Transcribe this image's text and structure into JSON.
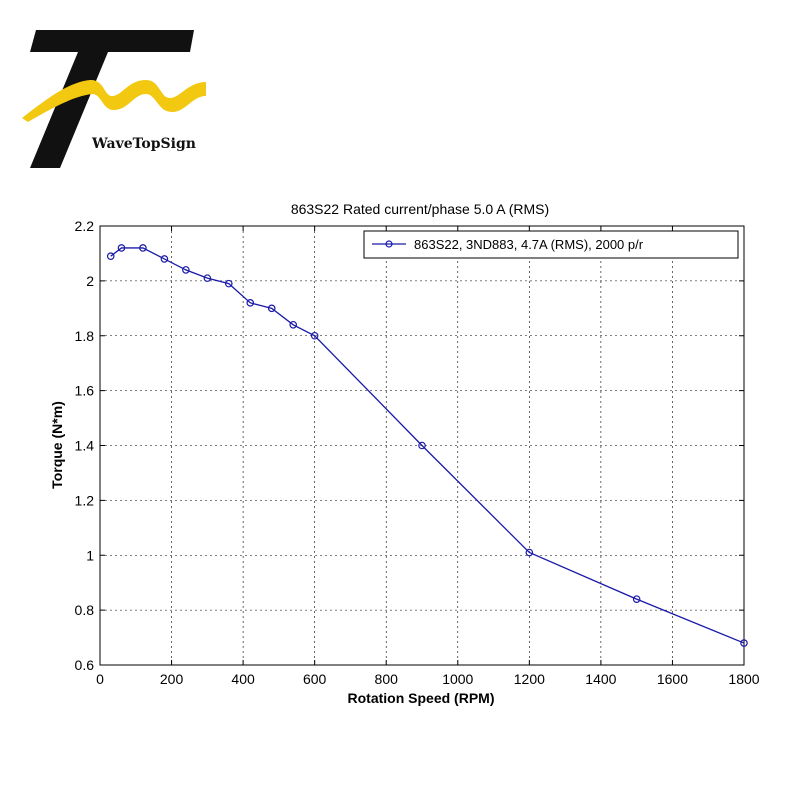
{
  "brand": {
    "name": "WaveTopSign"
  },
  "chart_data": {
    "type": "line",
    "title": "863S22 Rated current/phase 5.0 A (RMS)",
    "xlabel": "Rotation Speed (RPM)",
    "ylabel": "Torque (N*m)",
    "xlim": [
      0,
      1800
    ],
    "ylim": [
      0.6,
      2.2
    ],
    "xticks": [
      0,
      200,
      400,
      600,
      800,
      1000,
      1200,
      1400,
      1600,
      1800
    ],
    "yticks": [
      0.6,
      0.8,
      1,
      1.2,
      1.4,
      1.6,
      1.8,
      2,
      2.2
    ],
    "grid": true,
    "legend_position": "top-right",
    "series_color": "#1a1aa8",
    "series": [
      {
        "name": "863S22, 3ND883, 4.7A (RMS), 2000 p/r",
        "x": [
          30,
          60,
          120,
          180,
          240,
          300,
          360,
          420,
          480,
          540,
          600,
          900,
          1200,
          1500,
          1800
        ],
        "y": [
          2.09,
          2.12,
          2.12,
          2.08,
          2.04,
          2.01,
          1.99,
          1.92,
          1.9,
          1.84,
          1.8,
          1.4,
          1.01,
          0.84,
          0.68
        ]
      }
    ]
  }
}
